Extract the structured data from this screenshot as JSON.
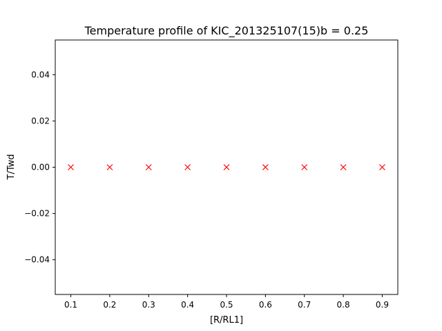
{
  "chart_data": {
    "type": "scatter",
    "title": "Temperature profile of KIC_201325107(15)b = 0.25",
    "xlabel": "[R/RL1]",
    "ylabel": "T/Twd",
    "xlim": [
      0.06,
      0.94
    ],
    "ylim": [
      -0.055,
      0.055
    ],
    "x_ticks": [
      0.1,
      0.2,
      0.3,
      0.4,
      0.5,
      0.6,
      0.7,
      0.8,
      0.9
    ],
    "x_tick_labels": [
      "0.1",
      "0.2",
      "0.3",
      "0.4",
      "0.5",
      "0.6",
      "0.7",
      "0.8",
      "0.9"
    ],
    "y_ticks": [
      0.04,
      0.02,
      0.0,
      -0.02,
      -0.04
    ],
    "y_tick_labels": [
      "0.04",
      "0.02",
      "0.00",
      "−0.02",
      "−0.04"
    ],
    "grid": false,
    "marker": "x",
    "marker_color": "#ff0000",
    "series": [
      {
        "x": [
          0.1,
          0.2,
          0.3,
          0.4,
          0.5,
          0.6,
          0.7,
          0.8,
          0.9
        ],
        "y": [
          0,
          0,
          0,
          0,
          0,
          0,
          0,
          0,
          0
        ]
      }
    ]
  }
}
